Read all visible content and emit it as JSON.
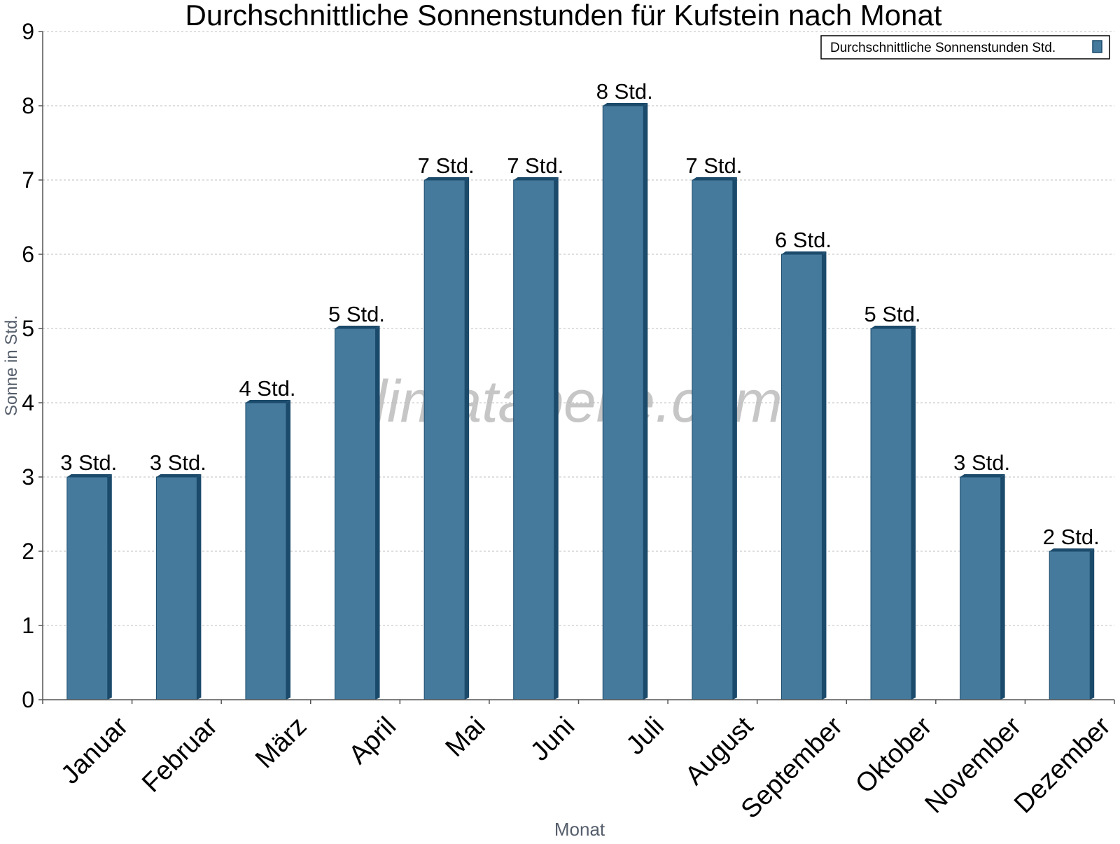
{
  "chart_data": {
    "type": "bar",
    "title": "Durchschnittliche Sonnenstunden für Kufstein nach Monat",
    "xlabel": "Monat",
    "ylabel": "Sonne in Std.",
    "categories": [
      "Januar",
      "Februar",
      "März",
      "April",
      "Mai",
      "Juni",
      "Juli",
      "August",
      "September",
      "Oktober",
      "November",
      "Dezember"
    ],
    "series": [
      {
        "name": "Durchschnittliche Sonnenstunden Std.",
        "values": [
          3,
          3,
          4,
          5,
          7,
          7,
          8,
          7,
          6,
          5,
          3,
          2
        ],
        "data_labels": [
          "3 Std.",
          "3 Std.",
          "4 Std.",
          "5 Std.",
          "7 Std.",
          "7 Std.",
          "8 Std.",
          "7 Std.",
          "6 Std.",
          "5 Std.",
          "3 Std.",
          "2 Std."
        ],
        "color": "#457a9c"
      }
    ],
    "ylim": [
      0,
      9
    ],
    "yticks": [
      "0",
      "1",
      "2",
      "3",
      "4",
      "5",
      "6",
      "7",
      "8",
      "9"
    ],
    "grid": true,
    "legend_position": "top-right",
    "watermark": "klimatabelle.com",
    "colors": {
      "bar": "#457a9c",
      "bar_edge": "#1b4a6b",
      "grid": "#cccccc",
      "axis": "#555555",
      "axis_title": "#555e6b",
      "watermark": "#b8b8b8"
    }
  }
}
